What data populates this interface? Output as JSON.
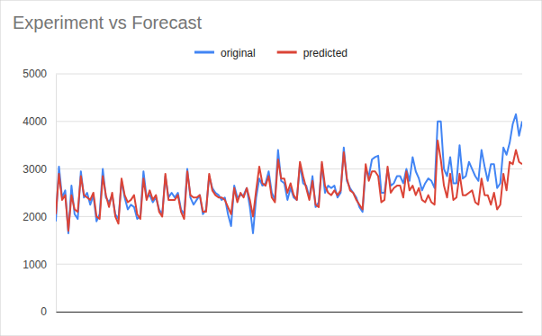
{
  "chart_data": {
    "type": "line",
    "title": "Experiment vs Forecast",
    "categories": [
      null,
      null,
      null,
      null,
      null,
      null,
      null,
      null,
      null,
      null,
      null,
      null,
      null,
      null,
      null,
      null,
      null,
      null,
      null,
      null,
      null,
      null,
      null,
      null,
      null,
      null,
      null,
      null,
      null,
      null,
      null,
      null,
      null,
      null,
      null,
      null,
      null,
      null,
      null,
      null,
      null,
      null,
      null,
      null,
      null,
      null,
      null,
      null,
      null,
      null,
      null,
      null,
      null,
      null,
      null,
      null,
      null,
      null,
      null,
      null,
      null,
      null,
      null,
      null,
      null,
      null,
      null,
      null,
      null,
      null,
      null,
      null,
      null,
      null,
      null,
      null,
      null,
      null,
      null,
      null,
      null,
      null,
      null,
      null,
      null,
      null,
      null,
      null,
      null,
      null,
      null,
      null,
      null,
      null,
      null,
      null,
      null,
      null,
      null,
      null,
      null,
      null,
      null,
      null,
      null,
      null,
      null,
      null,
      null,
      null,
      null,
      null,
      null,
      null,
      null,
      null,
      null,
      null,
      null,
      null,
      null,
      null,
      null,
      null,
      null,
      null,
      null,
      null,
      null,
      null,
      null,
      null,
      null,
      null,
      null,
      null,
      null,
      null,
      null,
      null,
      null,
      null,
      null,
      null,
      null,
      null,
      null,
      null,
      null,
      null
    ],
    "series": [
      {
        "name": "original",
        "color": "#4285f4",
        "values": [
          1900,
          3050,
          2400,
          2550,
          1650,
          2650,
          2050,
          1950,
          2950,
          2400,
          2500,
          2250,
          2450,
          1900,
          2050,
          3000,
          2400,
          2300,
          2450,
          2050,
          1950,
          2750,
          2400,
          2150,
          2250,
          2200,
          1950,
          2000,
          2950,
          2400,
          2450,
          2300,
          2400,
          2150,
          2050,
          2850,
          2400,
          2500,
          2400,
          2500,
          2150,
          2050,
          3000,
          2400,
          2250,
          2350,
          2450,
          2050,
          2150,
          2850,
          2600,
          2500,
          2450,
          2350,
          2400,
          2050,
          1800,
          2650,
          2400,
          2450,
          2450,
          2600,
          2200,
          1650,
          2400,
          2800,
          2650,
          2700,
          2950,
          2500,
          2350,
          3400,
          2750,
          2700,
          2350,
          2600,
          2400,
          2350,
          3100,
          2700,
          2650,
          2400,
          2850,
          2200,
          2300,
          3100,
          2500,
          2650,
          2600,
          2650,
          2400,
          2500,
          3450,
          2750,
          2600,
          2500,
          2400,
          2200,
          2100,
          3000,
          2850,
          3200,
          3250,
          3280,
          2500,
          2500,
          3000,
          2650,
          2700,
          2850,
          2850,
          2700,
          3000,
          2750,
          3250,
          2950,
          2800,
          2550,
          2700,
          2800,
          2750,
          2600,
          4000,
          4000,
          3000,
          2850,
          3250,
          2700,
          2700,
          3500,
          2800,
          2850,
          3150,
          3000,
          2850,
          2750,
          3400,
          3050,
          2750,
          3100,
          3100,
          2600,
          2700,
          3450,
          3300,
          3550,
          3950,
          4150,
          3700,
          4000
        ]
      },
      {
        "name": "predicted",
        "color": "#db4437",
        "values": [
          2050,
          2900,
          2350,
          2450,
          1700,
          2450,
          2150,
          2100,
          2850,
          2450,
          2400,
          2350,
          2500,
          2000,
          1950,
          2850,
          2450,
          2200,
          2500,
          2000,
          1850,
          2800,
          2450,
          2300,
          2350,
          2450,
          2050,
          1950,
          2800,
          2350,
          2550,
          2350,
          2450,
          2100,
          2000,
          2900,
          2350,
          2350,
          2350,
          2450,
          2100,
          1950,
          2950,
          2450,
          2400,
          2400,
          2450,
          2100,
          2100,
          2900,
          2550,
          2450,
          2400,
          2400,
          2350,
          2200,
          2050,
          2600,
          2300,
          2500,
          2400,
          2600,
          2350,
          2000,
          2550,
          3050,
          2700,
          2650,
          2850,
          2400,
          2300,
          3200,
          2800,
          2800,
          2500,
          2700,
          2450,
          2350,
          3150,
          2850,
          2600,
          2350,
          2750,
          2250,
          2200,
          3150,
          2650,
          2500,
          2450,
          2550,
          2450,
          2550,
          3350,
          2800,
          2550,
          2500,
          2350,
          2250,
          2150,
          3100,
          2750,
          2950,
          2950,
          2850,
          2300,
          2350,
          3050,
          2500,
          2600,
          2650,
          2650,
          2400,
          2950,
          2550,
          2650,
          2450,
          2600,
          2350,
          2300,
          2450,
          2300,
          2250,
          3600,
          3200,
          2650,
          2400,
          2900,
          2350,
          2400,
          2900,
          2450,
          2450,
          2500,
          2550,
          2300,
          2250,
          2800,
          2450,
          2450,
          2250,
          2500,
          2150,
          2250,
          2900,
          2550,
          3150,
          3100,
          3400,
          3150,
          3100
        ]
      }
    ],
    "ylim": [
      0,
      5000
    ],
    "yticks": [
      0,
      1000,
      2000,
      3000,
      4000,
      5000
    ],
    "grid": true,
    "legend": "top",
    "tick_labels": "y"
  }
}
